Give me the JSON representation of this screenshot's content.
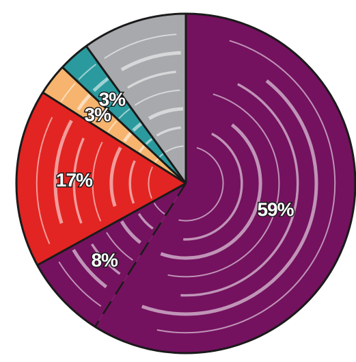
{
  "chart_data": {
    "type": "pie",
    "title": "",
    "start_angle_deg": 0,
    "direction": "clockwise",
    "slices": [
      {
        "label": "59%",
        "value": 59,
        "color": "#74125f"
      },
      {
        "label": "8%",
        "value": 8,
        "color": "#74125f",
        "divider": "dashed"
      },
      {
        "label": "17%",
        "value": 17,
        "color": "#e22522"
      },
      {
        "label": "3%",
        "value": 3,
        "color": "#f6b46e"
      },
      {
        "label": "3%",
        "value": 3,
        "color": "#2a9a9e"
      },
      {
        "label": "",
        "value": 10,
        "color": "#a7a9ac"
      }
    ]
  }
}
